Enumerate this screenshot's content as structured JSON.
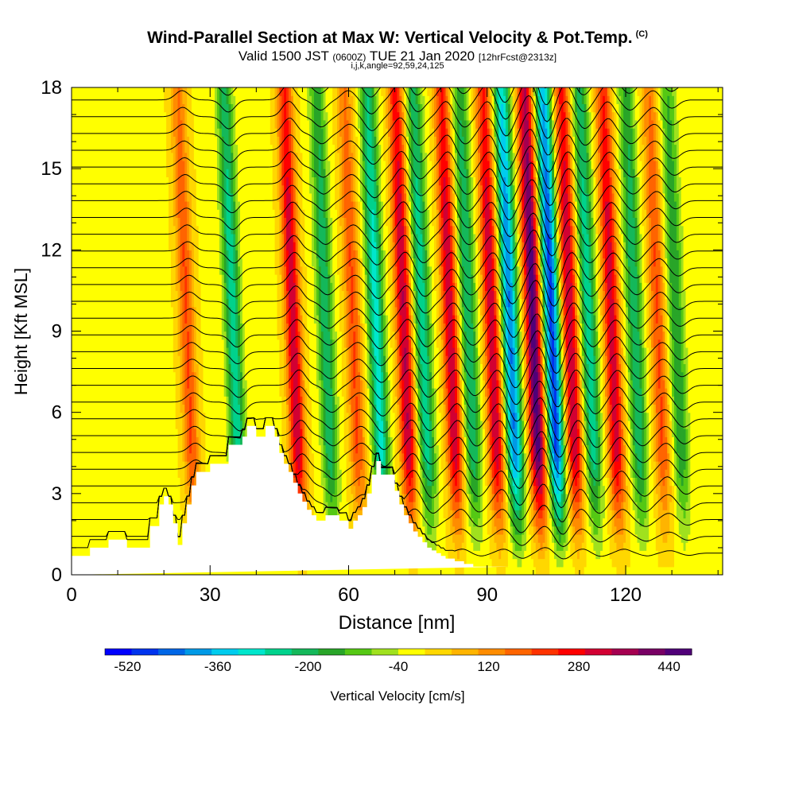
{
  "header": {
    "title": "Wind-Parallel Section at Max W: Vertical Velocity & Pot.Temp.",
    "copyright": "(C)",
    "valid_prefix": "Valid 1500 JST",
    "valid_utc": "(0600Z)",
    "valid_date": "TUE 21 Jan 2020",
    "forecast": "[12hrFcst@2313z]",
    "indices": "i,j,k,angle=92,59,24,125"
  },
  "chart_data": {
    "type": "heatmap",
    "xlabel": "Distance [nm]",
    "ylabel": "Height [Kft MSL]",
    "xlim": [
      0,
      141
    ],
    "ylim": [
      0,
      18
    ],
    "xticks": [
      0,
      30,
      60,
      90,
      120
    ],
    "yticks": [
      0,
      3,
      6,
      9,
      12,
      15,
      18
    ],
    "colorbar": {
      "label": "Vertical Velocity [cm/s]",
      "ticks": [
        -520,
        -360,
        -200,
        -40,
        120,
        280,
        440
      ],
      "min": -560,
      "max": 480,
      "colors": [
        "#0000ff",
        "#0033ee",
        "#0066e6",
        "#0099e6",
        "#00ccee",
        "#00e6cc",
        "#00d28c",
        "#14b85a",
        "#28a528",
        "#55c814",
        "#a0e11e",
        "#ffff00",
        "#ffd700",
        "#ffb400",
        "#ff8c00",
        "#ff6400",
        "#ff3200",
        "#ff0000",
        "#d20032",
        "#a50050",
        "#780064",
        "#500078"
      ]
    },
    "terrain": {
      "x": [
        0,
        4,
        4,
        8,
        8,
        12,
        12,
        17,
        17,
        19,
        19,
        20,
        20,
        21,
        21,
        22,
        22,
        23,
        23,
        24,
        24,
        25,
        25,
        26,
        26,
        27,
        27,
        30,
        30,
        34,
        34,
        37,
        37,
        38,
        38,
        40,
        40,
        42,
        42,
        44,
        44,
        45,
        45,
        46,
        46,
        47,
        47,
        48,
        48,
        49,
        49,
        50,
        50,
        51,
        51,
        52,
        52,
        53,
        53,
        55,
        55,
        58,
        58,
        60,
        60,
        61,
        61,
        62,
        62,
        63,
        63,
        64,
        64,
        65,
        65,
        66,
        66,
        67,
        67,
        70,
        70,
        71,
        71,
        72,
        72,
        73,
        73,
        74,
        74,
        75,
        75,
        76,
        76,
        77,
        77,
        78,
        78,
        79,
        79,
        80,
        80,
        81,
        81,
        83,
        83,
        85,
        85,
        87,
        87,
        90,
        90,
        95,
        95,
        141
      ],
      "y": [
        0.7,
        0.7,
        1.0,
        1.0,
        1.3,
        1.3,
        1.0,
        1.0,
        1.8,
        1.8,
        2.6,
        2.6,
        2.9,
        2.9,
        2.6,
        2.6,
        1.9,
        1.9,
        1.1,
        1.1,
        1.9,
        1.9,
        2.6,
        2.6,
        3.3,
        3.3,
        3.8,
        3.8,
        4.1,
        4.1,
        4.8,
        4.8,
        5.1,
        5.1,
        5.5,
        5.5,
        5.1,
        5.1,
        5.5,
        5.5,
        5.1,
        5.1,
        4.5,
        4.5,
        4.1,
        4.1,
        3.8,
        3.8,
        3.4,
        3.4,
        3.0,
        3.0,
        2.7,
        2.7,
        2.4,
        2.4,
        2.2,
        2.2,
        2.0,
        2.0,
        2.2,
        2.2,
        2.0,
        2.0,
        1.7,
        1.7,
        2.0,
        2.0,
        2.2,
        2.2,
        2.5,
        2.5,
        3.0,
        3.0,
        3.7,
        3.7,
        4.2,
        4.2,
        3.7,
        3.7,
        3.1,
        3.1,
        2.6,
        2.6,
        2.2,
        2.2,
        1.9,
        1.9,
        1.6,
        1.6,
        1.4,
        1.4,
        1.2,
        1.2,
        1.0,
        1.0,
        0.9,
        0.9,
        0.8,
        0.8,
        0.7,
        0.7,
        0.6,
        0.6,
        0.5,
        0.5,
        0.4,
        0.4,
        0.3,
        0.3,
        0.3,
        0.3
      ]
    },
    "waves": [
      {
        "x0": 27,
        "amp": 200
      },
      {
        "x0": 37,
        "amp": -260
      },
      {
        "x0": 50,
        "amp": 330
      },
      {
        "x0": 57,
        "amp": -220
      },
      {
        "x0": 63,
        "amp": 200
      },
      {
        "x0": 68,
        "amp": -300
      },
      {
        "x0": 74,
        "amp": 340
      },
      {
        "x0": 78,
        "amp": -260
      },
      {
        "x0": 84,
        "amp": 330
      },
      {
        "x0": 88,
        "amp": -230
      },
      {
        "x0": 93,
        "amp": 330
      },
      {
        "x0": 97,
        "amp": -420
      },
      {
        "x0": 102,
        "amp": 460
      },
      {
        "x0": 106,
        "amp": -480
      },
      {
        "x0": 110,
        "amp": 340
      },
      {
        "x0": 114,
        "amp": -260
      },
      {
        "x0": 119,
        "amp": 320
      },
      {
        "x0": 124,
        "amp": -220
      },
      {
        "x0": 129,
        "amp": 200
      },
      {
        "x0": 133,
        "amp": -180
      }
    ]
  }
}
